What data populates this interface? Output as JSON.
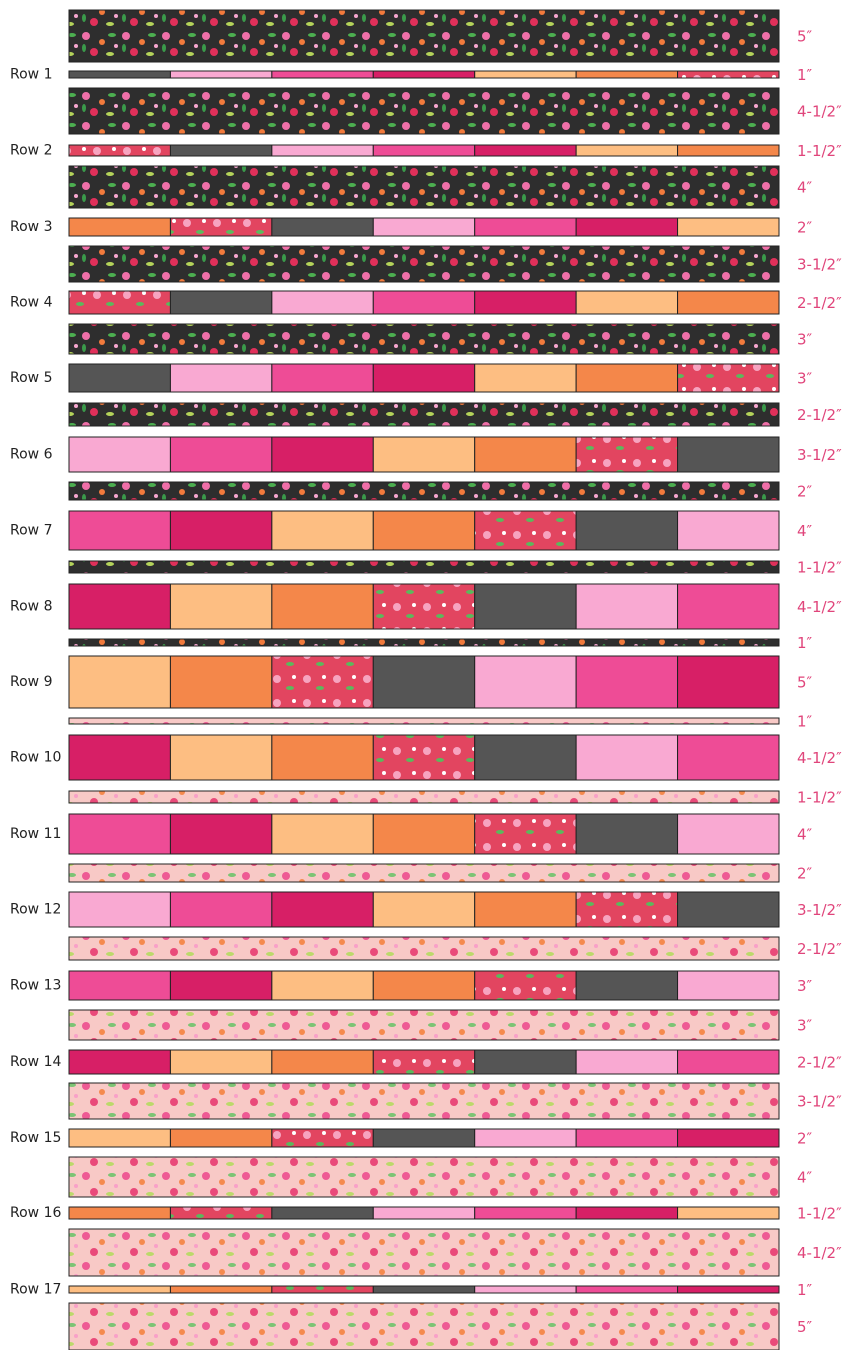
{
  "row_labels": [
    "Row 1",
    "Row 2",
    "Row 3",
    "Row 4",
    "Row 5",
    "Row 6",
    "Row 7",
    "Row 8",
    "Row 9",
    "Row 10",
    "Row 11",
    "Row 12",
    "Row 13",
    "Row 14",
    "Row 15",
    "Row 16",
    "Row 17"
  ],
  "strip_sizes": [
    "5″",
    "1″",
    "4-1/2″",
    "1-1/2″",
    "4″",
    "2″",
    "3-1/2″",
    "2-1/2″",
    "3″",
    "3″",
    "2-1/2″",
    "3-1/2″",
    "2″",
    "4″",
    "1-1/2″",
    "4-1/2″",
    "1″",
    "5″",
    "1″",
    "4-1/2″",
    "1-1/2″",
    "4″",
    "2″",
    "3-1/2″",
    "2-1/2″",
    "3″",
    "3″",
    "2-1/2″",
    "3-1/2″",
    "2″",
    "4″",
    "1-1/2″",
    "4-1/2″",
    "1″",
    "5″"
  ]
}
